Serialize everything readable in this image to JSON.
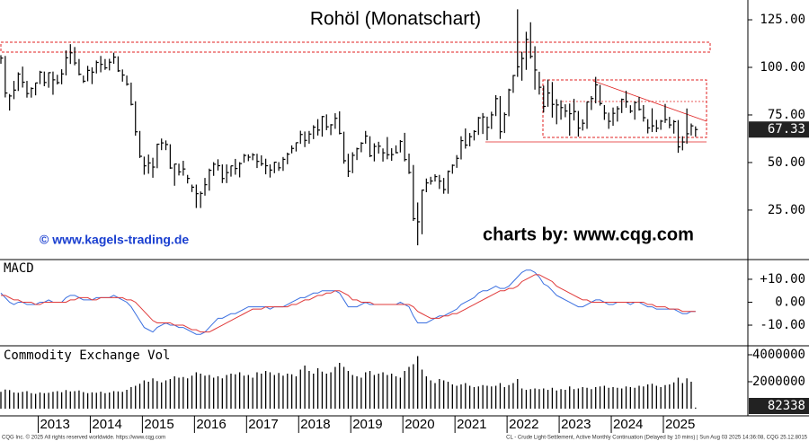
{
  "chart_data": [
    {
      "type": "ohlc",
      "title": "Rohöl (Monatschart)",
      "annotations": [
        "© www.kagels-trading.de",
        "charts by: www.cqg.com"
      ],
      "color": "#000000",
      "high": [
        106.4,
        106.0,
        86.0,
        92.9,
        97.4,
        100.4,
        92.9,
        89.5,
        91.9,
        98.2,
        97.8,
        97.4,
        97.8,
        96.1,
        99.0,
        108.9,
        112.2,
        110.7,
        104.4,
        95.7,
        100.8,
        100.0,
        103.6,
        106.0,
        104.4,
        104.5,
        107.7,
        105.8,
        98.9,
        95.7,
        92.0,
        82.2,
        66.6,
        53.1,
        54.2,
        52.5,
        59.9,
        62.6,
        61.6,
        59.6,
        49.3,
        49.4,
        50.9,
        43.5,
        38.4,
        38.4,
        34.8,
        41.9,
        46.8,
        50.2,
        51.7,
        49.0,
        49.0,
        48.3,
        51.9,
        50.2,
        54.5,
        54.3,
        54.9,
        54.6,
        53.8,
        52.0,
        49.0,
        50.4,
        50.2,
        52.9,
        55.2,
        59.0,
        60.5,
        66.7,
        66.3,
        66.6,
        69.6,
        72.8,
        74.5,
        75.3,
        70.2,
        75.9,
        76.9,
        66.2,
        54.6,
        55.4,
        57.8,
        60.7,
        66.6,
        63.8,
        60.1,
        60.9,
        57.4,
        63.4,
        57.5,
        59.0,
        61.8,
        65.6,
        54.7,
        48.7,
        29.0,
        35.7,
        41.6,
        42.5,
        43.8,
        43.5,
        41.9,
        45.8,
        49.0,
        53.9,
        63.8,
        67.9,
        65.5,
        67.0,
        74.0,
        76.0,
        74.1,
        76.7,
        85.4,
        84.9,
        76.3,
        88.8,
        96.0,
        130.5,
        108.2,
        118.7,
        123.7,
        111.1,
        97.7,
        90.4,
        93.6,
        92.3,
        83.3,
        82.7,
        80.6,
        81.0,
        83.5,
        77.1,
        72.7,
        82.0,
        84.9,
        95.0,
        90.8,
        80.2,
        76.2,
        78.9,
        79.6,
        83.6,
        87.7,
        80.1,
        82.1,
        84.5,
        80.2,
        72.8,
        78.5,
        72.4,
        72.4,
        80.8,
        74.0,
        72.3,
        72.3,
        63.8,
        78.4,
        70.5,
        69.0
      ],
      "low": [
        101.9,
        84.2,
        77.3,
        83.3,
        87.6,
        89.4,
        84.1,
        84.1,
        85.3,
        91.2,
        90.1,
        89.3,
        85.6,
        91.0,
        91.1,
        95.8,
        101.8,
        101.1,
        95.8,
        91.8,
        92.7,
        91.2,
        96.8,
        97.4,
        98.7,
        98.4,
        101.9,
        97.6,
        92.5,
        90.4,
        80.0,
        64.1,
        52.4,
        43.6,
        44.1,
        42.0,
        47.0,
        56.5,
        56.5,
        46.7,
        37.8,
        43.2,
        43.1,
        39.0,
        34.5,
        26.1,
        26.1,
        32.6,
        35.2,
        43.0,
        45.8,
        39.2,
        39.2,
        42.6,
        43.6,
        42.2,
        49.9,
        50.7,
        51.2,
        47.1,
        48.2,
        43.8,
        42.1,
        44.4,
        45.6,
        45.6,
        49.1,
        54.8,
        55.8,
        59.8,
        58.1,
        59.9,
        62.3,
        64.2,
        63.6,
        67.0,
        64.4,
        67.7,
        64.8,
        49.4,
        42.4,
        44.4,
        51.3,
        55.4,
        59.9,
        52.8,
        50.6,
        54.7,
        50.5,
        51.7,
        50.9,
        54.8,
        55.3,
        50.6,
        44.0,
        19.3,
        6.5,
        12.3,
        34.4,
        38.4,
        40.0,
        36.1,
        33.6,
        33.6,
        44.1,
        47.2,
        51.6,
        57.3,
        58.5,
        61.6,
        64.5,
        65.0,
        61.7,
        67.6,
        74.4,
        62.4,
        65.5,
        74.3,
        86.6,
        95.0,
        93.0,
        98.7,
        104.6,
        88.3,
        85.7,
        76.3,
        79.3,
        73.6,
        70.1,
        72.5,
        73.8,
        64.1,
        72.1,
        63.6,
        66.8,
        67.7,
        77.6,
        81.1,
        79.9,
        72.4,
        67.7,
        69.3,
        71.5,
        76.0,
        78.8,
        76.0,
        72.5,
        77.3,
        71.5,
        65.3,
        66.0,
        66.0,
        67.2,
        70.8,
        68.0,
        65.2,
        55.1,
        56.4,
        59.9,
        64.2,
        63.5
      ],
      "close": [
        104.87,
        86.53,
        84.96,
        88.06,
        96.47,
        92.19,
        86.24,
        88.91,
        91.82,
        97.49,
        92.05,
        97.23,
        93.46,
        91.97,
        96.56,
        105.03,
        107.65,
        102.33,
        96.38,
        92.72,
        98.42,
        97.49,
        102.59,
        101.58,
        99.74,
        102.71,
        105.37,
        98.17,
        95.96,
        91.16,
        80.54,
        66.15,
        53.27,
        48.24,
        49.76,
        47.6,
        59.63,
        60.3,
        59.47,
        47.12,
        49.2,
        45.09,
        46.59,
        41.65,
        37.04,
        33.62,
        33.75,
        38.34,
        45.92,
        49.1,
        48.33,
        41.6,
        44.7,
        48.24,
        46.86,
        49.44,
        53.72,
        52.81,
        54.01,
        50.6,
        49.33,
        48.32,
        46.04,
        50.17,
        47.23,
        51.67,
        54.38,
        57.4,
        60.42,
        64.73,
        61.64,
        64.94,
        68.57,
        67.04,
        74.15,
        68.76,
        69.8,
        73.25,
        65.31,
        50.93,
        45.41,
        53.79,
        57.22,
        60.14,
        63.91,
        53.5,
        58.47,
        58.58,
        55.1,
        54.07,
        54.18,
        55.17,
        61.06,
        51.56,
        44.76,
        20.48,
        18.84,
        35.49,
        39.27,
        40.27,
        42.61,
        40.22,
        35.79,
        45.34,
        48.52,
        52.2,
        61.5,
        59.16,
        63.58,
        66.32,
        73.47,
        73.95,
        68.5,
        75.03,
        83.57,
        66.18,
        75.21,
        88.15,
        95.72,
        100.28,
        104.69,
        114.67,
        105.76,
        98.62,
        89.55,
        79.49,
        86.53,
        80.55,
        80.26,
        78.87,
        77.05,
        75.67,
        76.78,
        68.09,
        70.64,
        81.8,
        83.63,
        90.79,
        81.02,
        75.96,
        71.65,
        75.85,
        78.26,
        83.17,
        81.93,
        76.99,
        81.54,
        77.91,
        73.55,
        68.17,
        69.26,
        68,
        71.72,
        72.53,
        69.76,
        71.48,
        58.21,
        60.79,
        65.11,
        69.26,
        67.33
      ],
      "ylim": [
        -1,
        135.4
      ],
      "yticks": [
        {
          "value": 25,
          "label": "25.00"
        },
        {
          "value": 50,
          "label": "50.00"
        },
        {
          "value": 75,
          "label": "75.00"
        },
        {
          "value": 100,
          "label": "100.00"
        },
        {
          "value": 125,
          "label": "125.00"
        }
      ]
    },
    {
      "type": "line",
      "title": "MACD",
      "series": [
        {
          "color": "#3a6fe0",
          "values": [
            4,
            2,
            0,
            -1,
            0,
            0,
            -1,
            -1,
            -1,
            0,
            0,
            1,
            0,
            0,
            0,
            2,
            3,
            3,
            2,
            1,
            1,
            1,
            2,
            2,
            2,
            2,
            3,
            2,
            1,
            0,
            -2,
            -5,
            -8,
            -11,
            -12,
            -13,
            -11,
            -10,
            -9,
            -10,
            -10,
            -11,
            -11,
            -12,
            -13,
            -14,
            -14,
            -13,
            -11,
            -9,
            -7,
            -7,
            -6,
            -5,
            -5,
            -4,
            -3,
            -2,
            -2,
            -2,
            -2,
            -2,
            -3,
            -2,
            -2,
            -2,
            -1,
            0,
            1,
            2,
            2,
            3,
            4,
            4,
            5,
            5,
            5,
            5,
            4,
            1,
            -2,
            -2,
            -2,
            -1,
            0,
            -1,
            -1,
            -1,
            -1,
            -1,
            -1,
            -1,
            0,
            -1,
            -2,
            -6,
            -9,
            -9,
            -9,
            -8,
            -7,
            -6,
            -6,
            -5,
            -4,
            -3,
            -1,
            0,
            1,
            2,
            4,
            5,
            5,
            6,
            7,
            6,
            6,
            7,
            9,
            11,
            13,
            14,
            14,
            13,
            11,
            8,
            7,
            5,
            3,
            2,
            1,
            0,
            -1,
            -2,
            -2,
            -1,
            0,
            1,
            1,
            0,
            -1,
            -1,
            0,
            0,
            0,
            -1,
            0,
            0,
            -1,
            -2,
            -2,
            -3,
            -3,
            -3,
            -3,
            -3,
            -4,
            -5,
            -5,
            -4,
            -4
          ]
        },
        {
          "color": "#e03a3a",
          "values": [
            3,
            3,
            2,
            1,
            1,
            0,
            0,
            0,
            -1,
            -1,
            0,
            0,
            0,
            0,
            0,
            0,
            1,
            1,
            2,
            2,
            2,
            1,
            1,
            2,
            2,
            2,
            2,
            2,
            2,
            1,
            1,
            0,
            -2,
            -4,
            -6,
            -8,
            -9,
            -9,
            -9,
            -9,
            -10,
            -10,
            -10,
            -11,
            -12,
            -12,
            -13,
            -13,
            -13,
            -12,
            -11,
            -10,
            -9,
            -8,
            -7,
            -6,
            -5,
            -4,
            -3,
            -3,
            -3,
            -2,
            -2,
            -2,
            -2,
            -2,
            -2,
            -1,
            -1,
            0,
            1,
            1,
            2,
            3,
            3,
            4,
            4,
            5,
            5,
            4,
            3,
            1,
            1,
            0,
            0,
            0,
            -1,
            -1,
            -1,
            -1,
            -1,
            -1,
            -1,
            -1,
            -1,
            -2,
            -4,
            -5,
            -6,
            -7,
            -7,
            -7,
            -6,
            -6,
            -5,
            -5,
            -4,
            -3,
            -2,
            -1,
            0,
            1,
            2,
            3,
            4,
            5,
            5,
            6,
            6,
            7,
            9,
            10,
            11,
            12,
            12,
            11,
            10,
            9,
            7,
            6,
            5,
            4,
            3,
            2,
            1,
            1,
            0,
            0,
            0,
            0,
            0,
            0,
            0,
            0,
            0,
            0,
            0,
            0,
            0,
            -1,
            -1,
            -2,
            -2,
            -2,
            -3,
            -3,
            -3,
            -4,
            -4,
            -4,
            -4
          ]
        }
      ],
      "ylim": [
        -19,
        18.2
      ],
      "yticks": [
        {
          "value": -10,
          "label": "-10.00"
        },
        {
          "value": 0,
          "label": "0.00"
        },
        {
          "value": 10,
          "label": "+10.00"
        }
      ]
    },
    {
      "type": "bar",
      "title": "Commodity Exchange Vol",
      "color": "#000000",
      "categories": [
        null,
        null,
        null,
        null,
        null,
        null,
        null,
        null,
        null,
        "2013",
        null,
        null,
        null,
        null,
        null,
        null,
        null,
        null,
        null,
        null,
        null,
        "2014",
        null,
        null,
        null,
        null,
        null,
        null,
        null,
        null,
        null,
        null,
        null,
        "2015",
        null,
        null,
        null,
        null,
        null,
        null,
        null,
        null,
        null,
        null,
        null,
        "2016",
        null,
        null,
        null,
        null,
        null,
        null,
        null,
        null,
        null,
        null,
        null,
        "2017",
        null,
        null,
        null,
        null,
        null,
        null,
        null,
        null,
        null,
        null,
        null,
        "2018",
        null,
        null,
        null,
        null,
        null,
        null,
        null,
        null,
        null,
        null,
        null,
        "2019",
        null,
        null,
        null,
        null,
        null,
        null,
        null,
        null,
        null,
        null,
        null,
        "2020",
        null,
        null,
        null,
        null,
        null,
        null,
        null,
        null,
        null,
        null,
        null,
        "2021",
        null,
        null,
        null,
        null,
        null,
        null,
        null,
        null,
        null,
        null,
        null,
        "2022",
        null,
        null,
        null,
        null,
        null,
        null,
        null,
        null,
        null,
        null,
        null,
        "2023",
        null,
        null,
        null,
        null,
        null,
        null,
        null,
        null,
        null,
        null,
        null,
        "2024",
        null,
        null,
        null,
        null,
        null,
        null,
        null,
        null,
        null,
        null,
        null,
        "2025",
        null,
        null,
        null,
        null,
        null,
        null,
        null
      ],
      "values": [
        1250000,
        1420000,
        1380000,
        1200000,
        1180000,
        1250000,
        1300000,
        1150000,
        1100000,
        1200000,
        1150000,
        1180000,
        1250000,
        1300000,
        1220000,
        1380000,
        1280000,
        1300000,
        1350000,
        1230000,
        1150000,
        1210000,
        1180000,
        1260000,
        1150000,
        1200000,
        1300000,
        1280000,
        1250000,
        1400000,
        1600000,
        1700000,
        1850000,
        2100000,
        2000000,
        2250000,
        2050000,
        1950000,
        2100000,
        2200000,
        2400000,
        2300000,
        2350000,
        2250000,
        2450000,
        2700000,
        2600000,
        2450000,
        2500000,
        2300000,
        2400000,
        2250000,
        2500000,
        2600000,
        2550000,
        2700000,
        2450000,
        2500000,
        2300000,
        2700000,
        2600000,
        2800000,
        2700000,
        2500000,
        2650000,
        2450000,
        2600000,
        2550000,
        2400000,
        2900000,
        3200000,
        2800000,
        2600000,
        3000000,
        2750000,
        2600000,
        2700000,
        3100000,
        3400000,
        3100000,
        2800000,
        2500000,
        2400000,
        2300000,
        2700000,
        2800000,
        2500000,
        2600000,
        2700000,
        2500000,
        2600000,
        2400000,
        2300000,
        2800000,
        3100000,
        3300000,
        3900000,
        2900000,
        2400000,
        2100000,
        1900000,
        2200000,
        2100000,
        2000000,
        1800000,
        1700000,
        1800000,
        1900000,
        1700000,
        1600000,
        1650000,
        1750000,
        1700000,
        1650000,
        1700000,
        1900000,
        1600000,
        1750000,
        1900000,
        2200000,
        1500000,
        1400000,
        1450000,
        1500000,
        1450000,
        1500000,
        1400000,
        1550000,
        1350000,
        1450000,
        1400000,
        1650000,
        1450000,
        1500000,
        1600000,
        1550000,
        1450000,
        1600000,
        1650000,
        1700000,
        1550000,
        1600000,
        1550000,
        1500000,
        1650000,
        1600000,
        1550000,
        1700000,
        1650000,
        1800000,
        1850000,
        1700000,
        1600000,
        1750000,
        1800000,
        1950000,
        2300000,
        1900000,
        2250000,
        2000000,
        82338
      ],
      "ylim": [
        0,
        4600000
      ],
      "yticks": [
        2000000,
        4000000
      ]
    }
  ],
  "footer": {
    "left": "CQG Inc. © 2025 All rights reserved worldwide. https://www.cqg.com",
    "right": "CL - Crude Light-Settlement, Active Monthly Continuation (Delayed by 10 mins) | Sun Aug 03 2025 14:36:08, CQG 25.12.8015"
  }
}
